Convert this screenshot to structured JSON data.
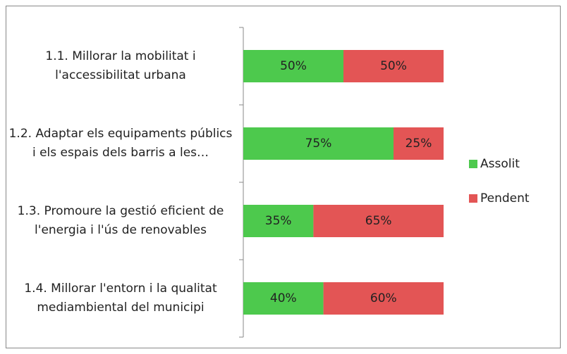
{
  "chart_data": {
    "type": "bar",
    "orientation": "horizontal",
    "stacked": true,
    "categories": [
      "1.1. Millorar la mobilitat i l'accessibilitat urbana",
      "1.2. Adaptar els equipaments públics i els espais dels barris a les…",
      "1.3. Promoure la gestió eficient de l'energia i l'ús de renovables",
      "1.4. Millorar l'entorn i la qualitat mediambiental del municipi"
    ],
    "series": [
      {
        "name": "Assolit",
        "color": "#4dc94d",
        "values": [
          50,
          75,
          35,
          40
        ],
        "value_labels": [
          "50%",
          "75%",
          "35%",
          "40%"
        ]
      },
      {
        "name": "Pendent",
        "color": "#e35555",
        "values": [
          50,
          25,
          65,
          60
        ],
        "value_labels": [
          "50%",
          "25%",
          "65%",
          "60%"
        ]
      }
    ],
    "xlim": [
      0,
      100
    ],
    "legend": "right"
  }
}
